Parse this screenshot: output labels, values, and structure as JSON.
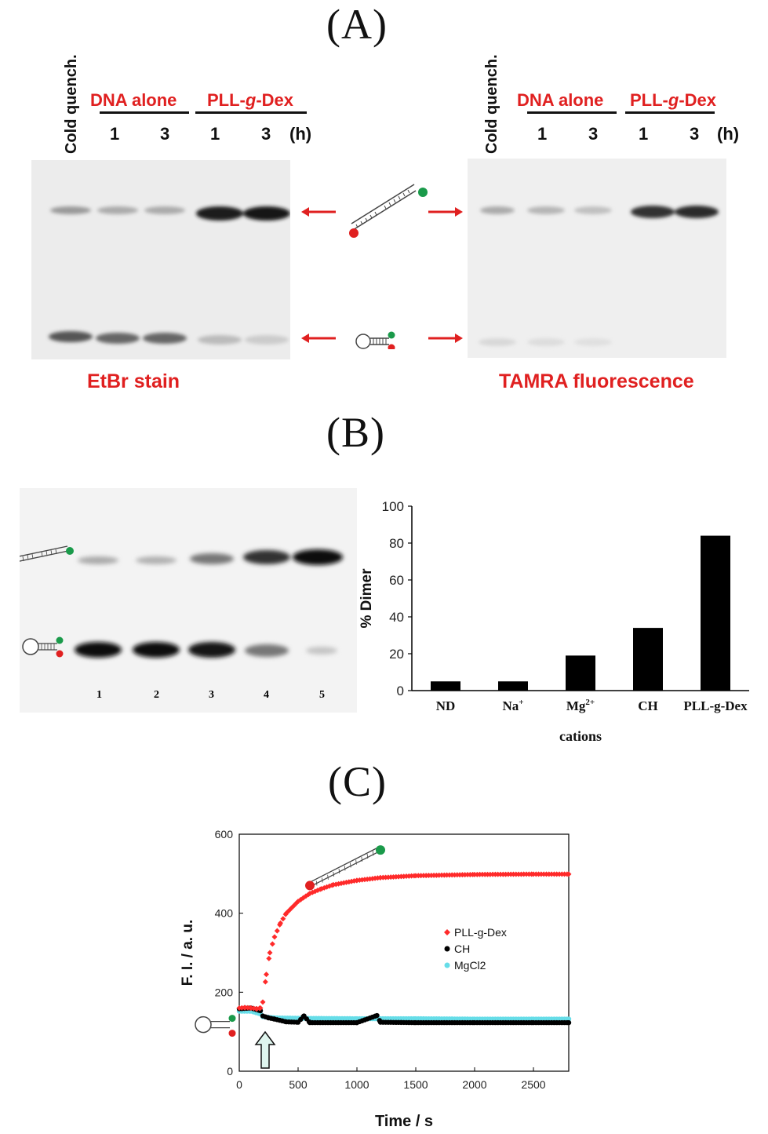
{
  "panelA": {
    "letter": "(A)",
    "left": {
      "cold_label": "Cold quench.",
      "group1": "DNA alone",
      "group2": "PLL-g-Dex",
      "group2_parts": [
        "PLL-",
        "g",
        "-Dex"
      ],
      "lanes": [
        "1",
        "3",
        "1",
        "3"
      ],
      "unit": "(h)",
      "caption": "EtBr stain"
    },
    "right": {
      "cold_label": "Cold quench.",
      "group1": "DNA alone",
      "group2_parts": [
        "PLL-",
        "g",
        "-Dex"
      ],
      "lanes": [
        "1",
        "3",
        "1",
        "3"
      ],
      "unit": "(h)",
      "caption": "TAMRA fluorescence"
    },
    "arrow_color": "#e02020"
  },
  "panelB": {
    "letter": "(B)",
    "lane_numbers": [
      "1",
      "2",
      "3",
      "4",
      "5"
    ]
  },
  "panelC": {
    "letter": "(C)"
  },
  "chart_data": [
    {
      "type": "bar",
      "categories": [
        "ND",
        "Na+",
        "Mg2+",
        "CH",
        "PLL-g-Dex"
      ],
      "category_labels": [
        {
          "base": "ND",
          "sup": ""
        },
        {
          "base": "Na",
          "sup": "+"
        },
        {
          "base": "Mg",
          "sup": "2+"
        },
        {
          "base": "CH",
          "sup": ""
        },
        {
          "base": "PLL-g-Dex",
          "sup": ""
        }
      ],
      "values": [
        5,
        5,
        19,
        34,
        84
      ],
      "ylabel": "% Dimer",
      "xlabel": "cations",
      "ylim": [
        0,
        100
      ],
      "yticks": [
        0,
        20,
        40,
        60,
        80,
        100
      ],
      "bar_color": "#000000"
    },
    {
      "type": "scatter",
      "xlabel": "Time / s",
      "ylabel": "F. I. / a. u.",
      "xlim": [
        0,
        2800
      ],
      "ylim": [
        0,
        600
      ],
      "xticks": [
        0,
        500,
        1000,
        1500,
        2000,
        2500
      ],
      "yticks": [
        0,
        200,
        400,
        600
      ],
      "legend_position": "right-middle",
      "series": [
        {
          "name": "PLL-g-Dex",
          "color": "#ff2a2a",
          "marker": "diamond",
          "points": [
            [
              0,
              160
            ],
            [
              50,
              161
            ],
            [
              100,
              160
            ],
            [
              150,
              158
            ],
            [
              180,
              160
            ],
            [
              200,
              175
            ],
            [
              230,
              245
            ],
            [
              260,
              300
            ],
            [
              300,
              340
            ],
            [
              350,
              375
            ],
            [
              400,
              400
            ],
            [
              500,
              430
            ],
            [
              600,
              450
            ],
            [
              700,
              462
            ],
            [
              800,
              472
            ],
            [
              1000,
              483
            ],
            [
              1200,
              490
            ],
            [
              1500,
              495
            ],
            [
              2000,
              498
            ],
            [
              2500,
              499
            ],
            [
              2800,
              499
            ]
          ]
        },
        {
          "name": "CH",
          "color": "#000000",
          "marker": "circle",
          "points": [
            [
              0,
              158
            ],
            [
              100,
              160
            ],
            [
              180,
              153
            ],
            [
              200,
              140
            ],
            [
              250,
              135
            ],
            [
              300,
              132
            ],
            [
              400,
              125
            ],
            [
              500,
              124
            ],
            [
              550,
              140
            ],
            [
              600,
              123
            ],
            [
              1000,
              123
            ],
            [
              1170,
              141
            ],
            [
              1200,
              124
            ],
            [
              1500,
              123
            ],
            [
              2000,
              123
            ],
            [
              2500,
              123
            ],
            [
              2800,
              123
            ]
          ]
        },
        {
          "name": "MgCl2",
          "color": "#66dde8",
          "marker": "circle",
          "points": [
            [
              0,
              152
            ],
            [
              100,
              152
            ],
            [
              180,
              145
            ],
            [
              200,
              138
            ],
            [
              300,
              135
            ],
            [
              500,
              134
            ],
            [
              1000,
              133
            ],
            [
              1500,
              133
            ],
            [
              2000,
              132
            ],
            [
              2500,
              132
            ],
            [
              2800,
              132
            ]
          ]
        }
      ]
    }
  ]
}
